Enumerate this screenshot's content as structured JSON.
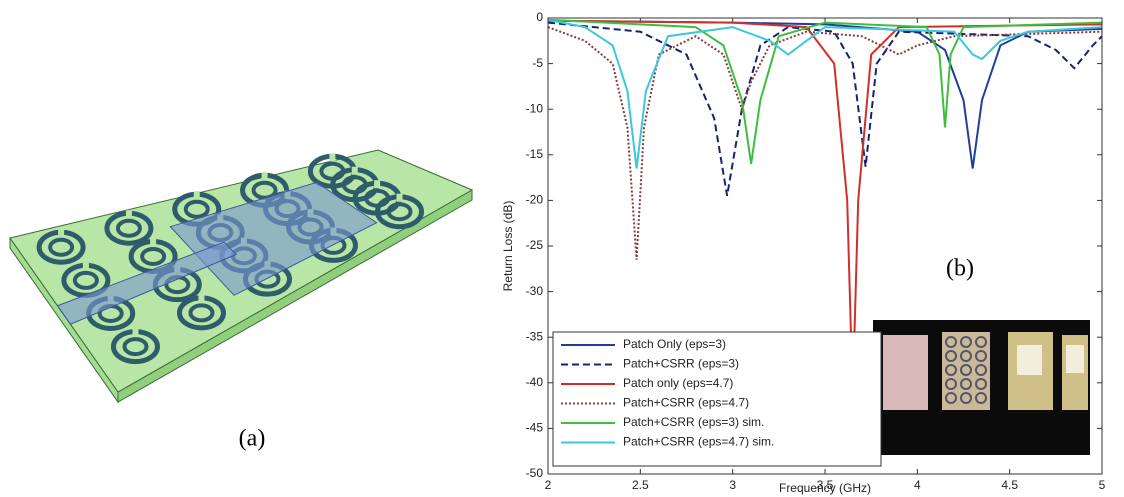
{
  "figure": {
    "panel_a_label": "(a)"
  },
  "chart_data": {
    "type": "line",
    "annotation": "(b)",
    "xlabel": "Frequency (GHz)",
    "ylabel": "Return Loss (dB)",
    "xlim": [
      2,
      5
    ],
    "xticks": [
      2,
      2.5,
      3,
      3.5,
      4,
      4.5,
      5
    ],
    "ylim": [
      -50,
      0
    ],
    "yticks": [
      0,
      -5,
      -10,
      -15,
      -20,
      -25,
      -30,
      -35,
      -40,
      -45,
      -50
    ],
    "grid": false,
    "legend": "lower left",
    "series": [
      {
        "name": "Patch Only (eps=3)",
        "color": "#1f3f99",
        "style": "solid",
        "x": [
          2,
          3,
          3.5,
          4,
          4.15,
          4.25,
          4.3,
          4.35,
          4.45,
          4.6,
          5
        ],
        "values": [
          -0.3,
          -0.5,
          -0.7,
          -1.5,
          -3.5,
          -9,
          -16.5,
          -9,
          -3,
          -1.5,
          -1.2
        ]
      },
      {
        "name": "Patch+CSRR (eps=3)",
        "color": "#14246e",
        "style": "dashed",
        "x": [
          2,
          2.5,
          2.75,
          2.9,
          2.97,
          3.05,
          3.15,
          3.3,
          3.55,
          3.65,
          3.72,
          3.78,
          3.9,
          4.6,
          4.75,
          4.85,
          4.95,
          5
        ],
        "values": [
          -0.5,
          -1.5,
          -4,
          -11,
          -19.5,
          -10,
          -3,
          -1,
          -1.5,
          -5,
          -16.3,
          -5,
          -1.5,
          -2,
          -3.5,
          -5.5,
          -3,
          -2
        ]
      },
      {
        "name": "Patch only (eps=4.7)",
        "color": "#d0302a",
        "style": "solid",
        "x": [
          2,
          3,
          3.4,
          3.55,
          3.62,
          3.65,
          3.68,
          3.75,
          3.9,
          5
        ],
        "values": [
          -0.3,
          -0.5,
          -1,
          -5,
          -20,
          -41.5,
          -20,
          -4,
          -1,
          -0.7
        ]
      },
      {
        "name": "Patch+CSRR (eps=4.7)",
        "color": "#8a3a3a",
        "style": "dotted",
        "x": [
          2,
          2.2,
          2.35,
          2.43,
          2.48,
          2.52,
          2.6,
          2.8,
          2.95,
          3.05,
          3.1,
          3.2,
          3.4,
          3.7,
          3.9,
          4,
          4.2,
          5
        ],
        "values": [
          -1,
          -2.5,
          -5,
          -12,
          -26.5,
          -12,
          -4,
          -2,
          -4,
          -10,
          -7,
          -3,
          -1.5,
          -2,
          -4,
          -3,
          -2,
          -1.5
        ]
      },
      {
        "name": "Patch+CSRR (eps=3) sim.",
        "color": "#3cbf3c",
        "style": "solid",
        "x": [
          2,
          2.8,
          2.95,
          3.05,
          3.1,
          3.15,
          3.25,
          3.5,
          4.05,
          4.12,
          4.15,
          4.18,
          4.25,
          5
        ],
        "values": [
          -0.2,
          -1,
          -3,
          -9,
          -16,
          -9,
          -2,
          -0.5,
          -1,
          -4,
          -12,
          -4,
          -1,
          -0.5
        ]
      },
      {
        "name": "Patch+CSRR (eps=4.7) sim.",
        "color": "#3cc8dc",
        "style": "solid",
        "x": [
          2,
          2.2,
          2.35,
          2.43,
          2.48,
          2.53,
          2.65,
          3,
          3.2,
          3.3,
          3.4,
          3.5,
          4.2,
          4.3,
          4.35,
          4.45,
          4.6,
          5
        ],
        "values": [
          -0.2,
          -1,
          -3,
          -8,
          -16.5,
          -8,
          -2,
          -1,
          -2.5,
          -4,
          -2.5,
          -1,
          -1.5,
          -4,
          -4.5,
          -2.5,
          -1.5,
          -1
        ]
      }
    ]
  }
}
